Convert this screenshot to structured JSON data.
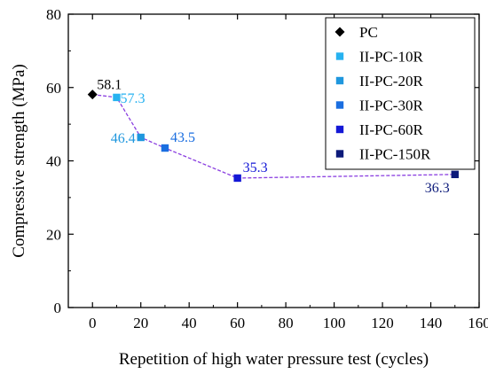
{
  "chart_data": {
    "type": "line",
    "title": "",
    "xlabel": "Repetition of high water pressure test (cycles)",
    "ylabel": "Compressive strength (MPa)",
    "xlim": [
      -10,
      160
    ],
    "ylim": [
      0,
      80
    ],
    "xticks": [
      0,
      20,
      40,
      60,
      80,
      100,
      120,
      140,
      160
    ],
    "yticks": [
      0,
      20,
      40,
      60,
      80
    ],
    "grid": false,
    "legend_position": "top-right",
    "line_color": "#8a3ee0",
    "line_style": "dashed",
    "series": [
      {
        "name": "PC",
        "x": 0,
        "y": 58.1,
        "label": "58.1",
        "marker": "diamond",
        "color": "#000000",
        "label_color": "#000000"
      },
      {
        "name": "II-PC-10R",
        "x": 10,
        "y": 57.3,
        "label": "57.3",
        "marker": "square",
        "color": "#27b2f0",
        "label_color": "#27b2f0"
      },
      {
        "name": "II-PC-20R",
        "x": 20,
        "y": 46.4,
        "label": "46.4",
        "marker": "square",
        "color": "#1f97de",
        "label_color": "#1f97de"
      },
      {
        "name": "II-PC-30R",
        "x": 30,
        "y": 43.5,
        "label": "43.5",
        "marker": "square",
        "color": "#1a6ee0",
        "label_color": "#1a6ee0"
      },
      {
        "name": "II-PC-60R",
        "x": 60,
        "y": 35.3,
        "label": "35.3",
        "marker": "square",
        "color": "#1418d6",
        "label_color": "#1418d6"
      },
      {
        "name": "II-PC-150R",
        "x": 150,
        "y": 36.3,
        "label": "36.3",
        "marker": "square",
        "color": "#0c1a7a",
        "label_color": "#0c1a7a"
      }
    ]
  }
}
